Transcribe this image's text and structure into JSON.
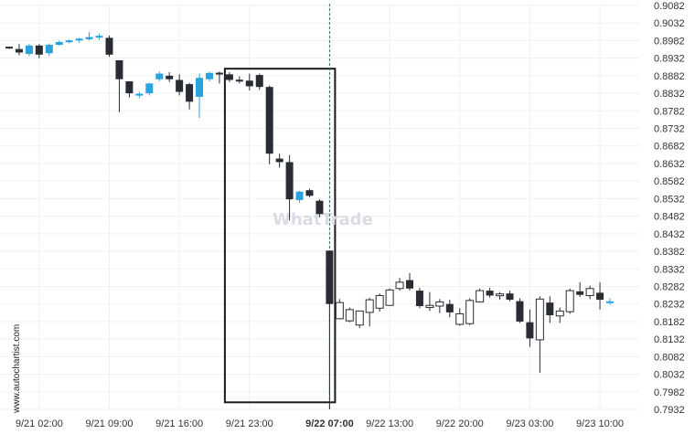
{
  "chart_data": {
    "type": "candlestick",
    "y_axis": {
      "ticks": [
        "0.9082",
        "0.9032",
        "0.8982",
        "0.8932",
        "0.8882",
        "0.8832",
        "0.8782",
        "0.8732",
        "0.8682",
        "0.8632",
        "0.8582",
        "0.8532",
        "0.8482",
        "0.8432",
        "0.8382",
        "0.8332",
        "0.8282",
        "0.8232",
        "0.8182",
        "0.8132",
        "0.8082",
        "0.8032",
        "0.7982",
        "0.7932"
      ],
      "range": [
        0.7932,
        0.9082
      ],
      "position": "right",
      "grid": true
    },
    "x_axis": {
      "ticks": [
        {
          "label": "9/21 02:00",
          "bar": 3,
          "bold": false
        },
        {
          "label": "9/21 09:00",
          "bar": 10,
          "bold": false
        },
        {
          "label": "9/21 16:00",
          "bar": 17,
          "bold": false
        },
        {
          "label": "9/21 23:00",
          "bar": 24,
          "bold": false
        },
        {
          "label": "9/22 07:00",
          "bar": 32,
          "bold": true
        },
        {
          "label": "9/22 13:00",
          "bar": 38,
          "bold": false
        },
        {
          "label": "9/22 20:00",
          "bar": 45,
          "bold": false
        },
        {
          "label": "9/23 03:00",
          "bar": 52,
          "bold": false
        },
        {
          "label": "9/23 10:00",
          "bar": 59,
          "bold": false
        }
      ],
      "grid": true
    },
    "candles": [
      {
        "o": 0.8962,
        "h": 0.8965,
        "l": 0.8958,
        "c": 0.8962,
        "style": "black"
      },
      {
        "o": 0.8958,
        "h": 0.8972,
        "l": 0.894,
        "c": 0.8948,
        "style": "black"
      },
      {
        "o": 0.8944,
        "h": 0.8972,
        "l": 0.8938,
        "c": 0.8968,
        "style": "blue"
      },
      {
        "o": 0.8968,
        "h": 0.8972,
        "l": 0.8932,
        "c": 0.8942,
        "style": "black"
      },
      {
        "o": 0.8946,
        "h": 0.8974,
        "l": 0.8938,
        "c": 0.897,
        "style": "blue"
      },
      {
        "o": 0.897,
        "h": 0.8982,
        "l": 0.8968,
        "c": 0.8978,
        "style": "blue"
      },
      {
        "o": 0.8978,
        "h": 0.8986,
        "l": 0.8974,
        "c": 0.8982,
        "style": "blue"
      },
      {
        "o": 0.8984,
        "h": 0.899,
        "l": 0.8976,
        "c": 0.8986,
        "style": "blue"
      },
      {
        "o": 0.8986,
        "h": 0.9006,
        "l": 0.8982,
        "c": 0.8992,
        "style": "blue"
      },
      {
        "o": 0.8994,
        "h": 0.9002,
        "l": 0.8984,
        "c": 0.8992,
        "style": "blue"
      },
      {
        "o": 0.899,
        "h": 0.8996,
        "l": 0.8936,
        "c": 0.8942,
        "style": "black"
      },
      {
        "o": 0.8926,
        "h": 0.8926,
        "l": 0.8778,
        "c": 0.8872,
        "style": "black"
      },
      {
        "o": 0.8866,
        "h": 0.8866,
        "l": 0.882,
        "c": 0.8832,
        "style": "black"
      },
      {
        "o": 0.8826,
        "h": 0.8836,
        "l": 0.8818,
        "c": 0.883,
        "style": "blue"
      },
      {
        "o": 0.8832,
        "h": 0.8862,
        "l": 0.8826,
        "c": 0.886,
        "style": "blue"
      },
      {
        "o": 0.8872,
        "h": 0.8894,
        "l": 0.8866,
        "c": 0.8888,
        "style": "blue"
      },
      {
        "o": 0.8882,
        "h": 0.8892,
        "l": 0.8864,
        "c": 0.8872,
        "style": "black"
      },
      {
        "o": 0.887,
        "h": 0.8886,
        "l": 0.8826,
        "c": 0.8836,
        "style": "black"
      },
      {
        "o": 0.8858,
        "h": 0.8862,
        "l": 0.8786,
        "c": 0.8808,
        "style": "black"
      },
      {
        "o": 0.8822,
        "h": 0.8888,
        "l": 0.8762,
        "c": 0.8876,
        "style": "blue"
      },
      {
        "o": 0.8872,
        "h": 0.8894,
        "l": 0.8866,
        "c": 0.889,
        "style": "blue"
      },
      {
        "o": 0.889,
        "h": 0.8894,
        "l": 0.886,
        "c": 0.8886,
        "style": "black"
      },
      {
        "o": 0.8886,
        "h": 0.8892,
        "l": 0.8864,
        "c": 0.887,
        "style": "black"
      },
      {
        "o": 0.887,
        "h": 0.888,
        "l": 0.886,
        "c": 0.8866,
        "style": "black"
      },
      {
        "o": 0.8868,
        "h": 0.8888,
        "l": 0.884,
        "c": 0.8852,
        "style": "black"
      },
      {
        "o": 0.8884,
        "h": 0.8888,
        "l": 0.8842,
        "c": 0.885,
        "style": "black"
      },
      {
        "o": 0.885,
        "h": 0.8854,
        "l": 0.863,
        "c": 0.866,
        "style": "black"
      },
      {
        "o": 0.8646,
        "h": 0.866,
        "l": 0.862,
        "c": 0.8636,
        "style": "black"
      },
      {
        "o": 0.8636,
        "h": 0.8656,
        "l": 0.847,
        "c": 0.853,
        "style": "black"
      },
      {
        "o": 0.8528,
        "h": 0.8554,
        "l": 0.852,
        "c": 0.8552,
        "style": "blue"
      },
      {
        "o": 0.8556,
        "h": 0.856,
        "l": 0.8536,
        "c": 0.854,
        "style": "black"
      },
      {
        "o": 0.8526,
        "h": 0.853,
        "l": 0.848,
        "c": 0.8488,
        "style": "black"
      },
      {
        "o": 0.8384,
        "h": 0.8384,
        "l": 0.7932,
        "c": 0.8232,
        "style": "black"
      },
      {
        "o": 0.819,
        "h": 0.8246,
        "l": 0.8188,
        "c": 0.8236,
        "style": "hollow"
      },
      {
        "o": 0.8184,
        "h": 0.8222,
        "l": 0.818,
        "c": 0.8216,
        "style": "hollow"
      },
      {
        "o": 0.8172,
        "h": 0.821,
        "l": 0.8164,
        "c": 0.8212,
        "style": "hollow"
      },
      {
        "o": 0.8208,
        "h": 0.825,
        "l": 0.8168,
        "c": 0.8244,
        "style": "hollow"
      },
      {
        "o": 0.822,
        "h": 0.8262,
        "l": 0.821,
        "c": 0.8256,
        "style": "hollow"
      },
      {
        "o": 0.8228,
        "h": 0.8276,
        "l": 0.8228,
        "c": 0.8272,
        "style": "hollow"
      },
      {
        "o": 0.8276,
        "h": 0.8306,
        "l": 0.827,
        "c": 0.8294,
        "style": "hollow"
      },
      {
        "o": 0.83,
        "h": 0.832,
        "l": 0.827,
        "c": 0.8276,
        "style": "black"
      },
      {
        "o": 0.827,
        "h": 0.8278,
        "l": 0.822,
        "c": 0.8226,
        "style": "black"
      },
      {
        "o": 0.8228,
        "h": 0.8266,
        "l": 0.8212,
        "c": 0.8222,
        "style": "hollow"
      },
      {
        "o": 0.8238,
        "h": 0.8246,
        "l": 0.8206,
        "c": 0.8226,
        "style": "hollow"
      },
      {
        "o": 0.8232,
        "h": 0.8244,
        "l": 0.8194,
        "c": 0.8208,
        "style": "black"
      },
      {
        "o": 0.8204,
        "h": 0.822,
        "l": 0.817,
        "c": 0.8174,
        "style": "hollow"
      },
      {
        "o": 0.8176,
        "h": 0.8248,
        "l": 0.8172,
        "c": 0.8242,
        "style": "hollow"
      },
      {
        "o": 0.8238,
        "h": 0.8276,
        "l": 0.8236,
        "c": 0.827,
        "style": "hollow"
      },
      {
        "o": 0.827,
        "h": 0.8278,
        "l": 0.825,
        "c": 0.8256,
        "style": "black"
      },
      {
        "o": 0.8256,
        "h": 0.8266,
        "l": 0.8244,
        "c": 0.826,
        "style": "hollow"
      },
      {
        "o": 0.8262,
        "h": 0.827,
        "l": 0.824,
        "c": 0.8244,
        "style": "black"
      },
      {
        "o": 0.824,
        "h": 0.8248,
        "l": 0.8178,
        "c": 0.8182,
        "style": "black"
      },
      {
        "o": 0.818,
        "h": 0.8216,
        "l": 0.811,
        "c": 0.8134,
        "style": "black"
      },
      {
        "o": 0.813,
        "h": 0.8254,
        "l": 0.8036,
        "c": 0.8246,
        "style": "hollow"
      },
      {
        "o": 0.8236,
        "h": 0.8254,
        "l": 0.8178,
        "c": 0.82,
        "style": "black"
      },
      {
        "o": 0.8198,
        "h": 0.8222,
        "l": 0.8178,
        "c": 0.8212,
        "style": "hollow"
      },
      {
        "o": 0.821,
        "h": 0.8276,
        "l": 0.8204,
        "c": 0.827,
        "style": "hollow"
      },
      {
        "o": 0.8268,
        "h": 0.8294,
        "l": 0.8252,
        "c": 0.8258,
        "style": "black"
      },
      {
        "o": 0.8256,
        "h": 0.8284,
        "l": 0.8246,
        "c": 0.8276,
        "style": "hollow"
      },
      {
        "o": 0.8264,
        "h": 0.8294,
        "l": 0.8216,
        "c": 0.8244,
        "style": "black"
      },
      {
        "o": 0.8236,
        "h": 0.8248,
        "l": 0.823,
        "c": 0.8238,
        "style": "blue"
      }
    ],
    "pattern_box": {
      "bar_start": 22,
      "bar_end": 32,
      "price_top": 0.8902,
      "price_bottom": 0.7952
    },
    "breakout_marker_bar": 32,
    "watermark": "WhatTrade",
    "side_label": "www.autochartist.com",
    "colors": {
      "bear": "#2a2c33",
      "bull": "#29a3dd",
      "hollow_stroke": "#2a2c33",
      "grid": "#eef0f3",
      "box": "#1a1a1a",
      "marker": "#2f6d6a"
    }
  }
}
